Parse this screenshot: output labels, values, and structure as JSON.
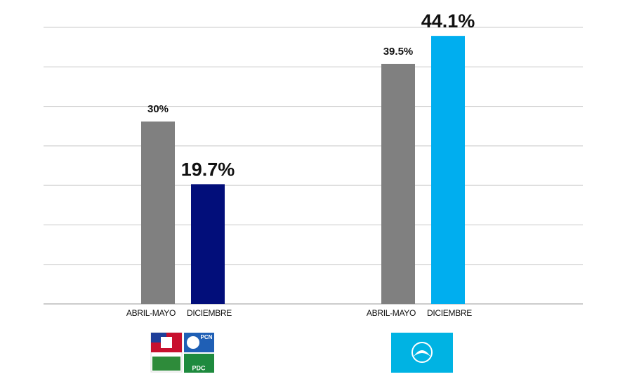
{
  "chart_data": {
    "type": "bar",
    "ylim": [
      0,
      45.5
    ],
    "yticks": [
      0,
      6.5,
      13,
      19.5,
      26,
      32.5,
      39,
      45.5
    ],
    "grid": true,
    "groups": [
      {
        "categories": [
          "ABRIL-MAYO",
          "DICIEMBRE"
        ],
        "values": [
          30,
          19.7
        ],
        "value_labels": [
          "30%",
          "19.7%"
        ],
        "colors": [
          "#808080",
          "#020e7a"
        ]
      },
      {
        "categories": [
          "ABRIL-MAYO",
          "DICIEMBRE"
        ],
        "values": [
          39.5,
          44.1
        ],
        "value_labels": [
          "39.5%",
          "44.1%"
        ],
        "colors": [
          "#808080",
          "#00aeef"
        ]
      }
    ]
  },
  "logos": {
    "left": [
      "PCN",
      "PDC"
    ]
  }
}
